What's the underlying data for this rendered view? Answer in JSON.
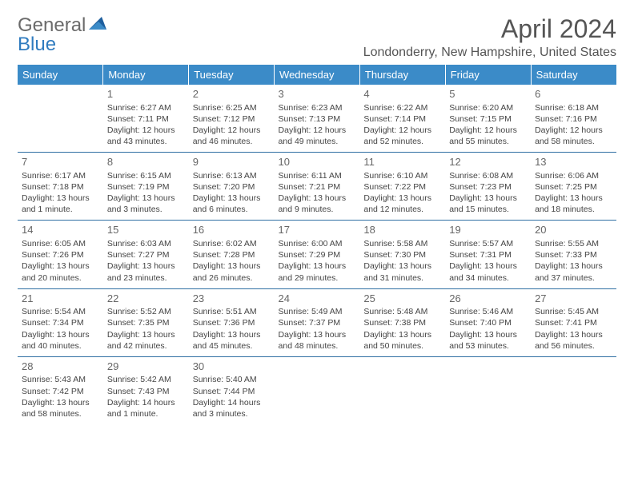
{
  "logo": {
    "part1": "General",
    "part2": "Blue"
  },
  "title": "April 2024",
  "location": "Londonderry, New Hampshire, United States",
  "colors": {
    "header_bg": "#3b8bc8",
    "header_text": "#ffffff",
    "row_border": "#2f6fa3",
    "logo_gray": "#6a6a6a",
    "logo_blue": "#2f7bbf",
    "text": "#444444"
  },
  "day_headers": [
    "Sunday",
    "Monday",
    "Tuesday",
    "Wednesday",
    "Thursday",
    "Friday",
    "Saturday"
  ],
  "weeks": [
    [
      null,
      {
        "n": "1",
        "sunrise": "Sunrise: 6:27 AM",
        "sunset": "Sunset: 7:11 PM",
        "d1": "Daylight: 12 hours",
        "d2": "and 43 minutes."
      },
      {
        "n": "2",
        "sunrise": "Sunrise: 6:25 AM",
        "sunset": "Sunset: 7:12 PM",
        "d1": "Daylight: 12 hours",
        "d2": "and 46 minutes."
      },
      {
        "n": "3",
        "sunrise": "Sunrise: 6:23 AM",
        "sunset": "Sunset: 7:13 PM",
        "d1": "Daylight: 12 hours",
        "d2": "and 49 minutes."
      },
      {
        "n": "4",
        "sunrise": "Sunrise: 6:22 AM",
        "sunset": "Sunset: 7:14 PM",
        "d1": "Daylight: 12 hours",
        "d2": "and 52 minutes."
      },
      {
        "n": "5",
        "sunrise": "Sunrise: 6:20 AM",
        "sunset": "Sunset: 7:15 PM",
        "d1": "Daylight: 12 hours",
        "d2": "and 55 minutes."
      },
      {
        "n": "6",
        "sunrise": "Sunrise: 6:18 AM",
        "sunset": "Sunset: 7:16 PM",
        "d1": "Daylight: 12 hours",
        "d2": "and 58 minutes."
      }
    ],
    [
      {
        "n": "7",
        "sunrise": "Sunrise: 6:17 AM",
        "sunset": "Sunset: 7:18 PM",
        "d1": "Daylight: 13 hours",
        "d2": "and 1 minute."
      },
      {
        "n": "8",
        "sunrise": "Sunrise: 6:15 AM",
        "sunset": "Sunset: 7:19 PM",
        "d1": "Daylight: 13 hours",
        "d2": "and 3 minutes."
      },
      {
        "n": "9",
        "sunrise": "Sunrise: 6:13 AM",
        "sunset": "Sunset: 7:20 PM",
        "d1": "Daylight: 13 hours",
        "d2": "and 6 minutes."
      },
      {
        "n": "10",
        "sunrise": "Sunrise: 6:11 AM",
        "sunset": "Sunset: 7:21 PM",
        "d1": "Daylight: 13 hours",
        "d2": "and 9 minutes."
      },
      {
        "n": "11",
        "sunrise": "Sunrise: 6:10 AM",
        "sunset": "Sunset: 7:22 PM",
        "d1": "Daylight: 13 hours",
        "d2": "and 12 minutes."
      },
      {
        "n": "12",
        "sunrise": "Sunrise: 6:08 AM",
        "sunset": "Sunset: 7:23 PM",
        "d1": "Daylight: 13 hours",
        "d2": "and 15 minutes."
      },
      {
        "n": "13",
        "sunrise": "Sunrise: 6:06 AM",
        "sunset": "Sunset: 7:25 PM",
        "d1": "Daylight: 13 hours",
        "d2": "and 18 minutes."
      }
    ],
    [
      {
        "n": "14",
        "sunrise": "Sunrise: 6:05 AM",
        "sunset": "Sunset: 7:26 PM",
        "d1": "Daylight: 13 hours",
        "d2": "and 20 minutes."
      },
      {
        "n": "15",
        "sunrise": "Sunrise: 6:03 AM",
        "sunset": "Sunset: 7:27 PM",
        "d1": "Daylight: 13 hours",
        "d2": "and 23 minutes."
      },
      {
        "n": "16",
        "sunrise": "Sunrise: 6:02 AM",
        "sunset": "Sunset: 7:28 PM",
        "d1": "Daylight: 13 hours",
        "d2": "and 26 minutes."
      },
      {
        "n": "17",
        "sunrise": "Sunrise: 6:00 AM",
        "sunset": "Sunset: 7:29 PM",
        "d1": "Daylight: 13 hours",
        "d2": "and 29 minutes."
      },
      {
        "n": "18",
        "sunrise": "Sunrise: 5:58 AM",
        "sunset": "Sunset: 7:30 PM",
        "d1": "Daylight: 13 hours",
        "d2": "and 31 minutes."
      },
      {
        "n": "19",
        "sunrise": "Sunrise: 5:57 AM",
        "sunset": "Sunset: 7:31 PM",
        "d1": "Daylight: 13 hours",
        "d2": "and 34 minutes."
      },
      {
        "n": "20",
        "sunrise": "Sunrise: 5:55 AM",
        "sunset": "Sunset: 7:33 PM",
        "d1": "Daylight: 13 hours",
        "d2": "and 37 minutes."
      }
    ],
    [
      {
        "n": "21",
        "sunrise": "Sunrise: 5:54 AM",
        "sunset": "Sunset: 7:34 PM",
        "d1": "Daylight: 13 hours",
        "d2": "and 40 minutes."
      },
      {
        "n": "22",
        "sunrise": "Sunrise: 5:52 AM",
        "sunset": "Sunset: 7:35 PM",
        "d1": "Daylight: 13 hours",
        "d2": "and 42 minutes."
      },
      {
        "n": "23",
        "sunrise": "Sunrise: 5:51 AM",
        "sunset": "Sunset: 7:36 PM",
        "d1": "Daylight: 13 hours",
        "d2": "and 45 minutes."
      },
      {
        "n": "24",
        "sunrise": "Sunrise: 5:49 AM",
        "sunset": "Sunset: 7:37 PM",
        "d1": "Daylight: 13 hours",
        "d2": "and 48 minutes."
      },
      {
        "n": "25",
        "sunrise": "Sunrise: 5:48 AM",
        "sunset": "Sunset: 7:38 PM",
        "d1": "Daylight: 13 hours",
        "d2": "and 50 minutes."
      },
      {
        "n": "26",
        "sunrise": "Sunrise: 5:46 AM",
        "sunset": "Sunset: 7:40 PM",
        "d1": "Daylight: 13 hours",
        "d2": "and 53 minutes."
      },
      {
        "n": "27",
        "sunrise": "Sunrise: 5:45 AM",
        "sunset": "Sunset: 7:41 PM",
        "d1": "Daylight: 13 hours",
        "d2": "and 56 minutes."
      }
    ],
    [
      {
        "n": "28",
        "sunrise": "Sunrise: 5:43 AM",
        "sunset": "Sunset: 7:42 PM",
        "d1": "Daylight: 13 hours",
        "d2": "and 58 minutes."
      },
      {
        "n": "29",
        "sunrise": "Sunrise: 5:42 AM",
        "sunset": "Sunset: 7:43 PM",
        "d1": "Daylight: 14 hours",
        "d2": "and 1 minute."
      },
      {
        "n": "30",
        "sunrise": "Sunrise: 5:40 AM",
        "sunset": "Sunset: 7:44 PM",
        "d1": "Daylight: 14 hours",
        "d2": "and 3 minutes."
      },
      null,
      null,
      null,
      null
    ]
  ]
}
